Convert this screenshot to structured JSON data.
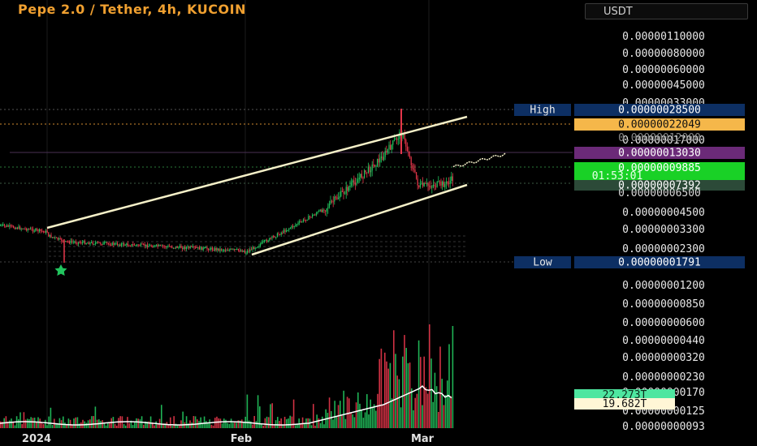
{
  "title": "Pepe 2.0 / Tether, 4h, KUCOIN",
  "currency": "USDT",
  "chart_data": {
    "type": "candlestick",
    "pair": "Pepe 2.0 / Tether",
    "timeframe": "4h",
    "exchange": "KUCOIN",
    "price_axis": {
      "scale": "log",
      "ticks": [
        "0.00000110000",
        "0.00000080000",
        "0.00000060000",
        "0.00000045000",
        "0.00000033000",
        "0.00000017000",
        "0.00000004500",
        "0.00000003300",
        "0.00000002300",
        "0.00000001200",
        "0.00000000850",
        "0.00000000600",
        "0.00000000440",
        "0.00000000320",
        "0.00000000230",
        "0.00000000170",
        "0.00000000125",
        "0.00000000093"
      ]
    },
    "time_axis": {
      "labels": [
        "2024",
        "Feb",
        "Mar"
      ]
    },
    "markers": {
      "high": {
        "label": "High",
        "value": "0.00000028500"
      },
      "low": {
        "label": "Low",
        "value": "0.00000001791"
      },
      "level_orange": "0.00000022049",
      "level_purple": "0.00000013030",
      "last_price": "0.00000009885",
      "countdown": "01:53:01",
      "level_grey": "0.00000007392",
      "level_hidden_1": "0.00000012000",
      "level_hidden_2": "0.00000006500"
    },
    "volume": {
      "tag_green": "22.273T",
      "tag_white": "19.682T"
    },
    "channel": "ascending",
    "colors": {
      "up": "#22c55e",
      "down": "#e5364a",
      "title": "#f0a030",
      "channel": "#f5f0c8"
    }
  }
}
